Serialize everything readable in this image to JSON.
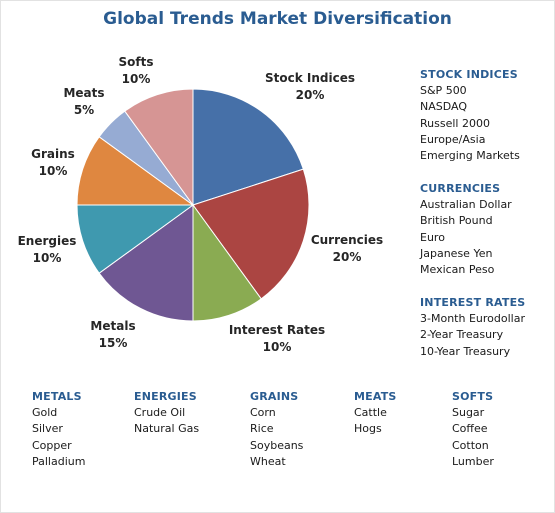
{
  "title": "Global Trends Market Diversification",
  "chart_data": {
    "type": "pie",
    "title": "Global Trends Market Diversification",
    "start_angle_deg": 0,
    "direction": "clockwise",
    "slices": [
      {
        "name": "Stock Indices",
        "value": 20,
        "pct_label": "20%",
        "color": "#4670a8"
      },
      {
        "name": "Currencies",
        "value": 20,
        "pct_label": "20%",
        "color": "#ab4542"
      },
      {
        "name": "Interest Rates",
        "value": 10,
        "pct_label": "10%",
        "color": "#8aab52"
      },
      {
        "name": "Metals",
        "value": 15,
        "pct_label": "15%",
        "color": "#6f5793"
      },
      {
        "name": "Energies",
        "value": 10,
        "pct_label": "10%",
        "color": "#3f99af"
      },
      {
        "name": "Grains",
        "value": 10,
        "pct_label": "10%",
        "color": "#df8740"
      },
      {
        "name": "Meats",
        "value": 5,
        "pct_label": "5%",
        "color": "#96abd3"
      },
      {
        "name": "Softs",
        "value": 10,
        "pct_label": "10%",
        "color": "#d69594"
      }
    ]
  },
  "side_groups": [
    {
      "title": "STOCK INDICES",
      "items": [
        "S&P 500",
        "NASDAQ",
        "Russell 2000",
        "Europe/Asia",
        "Emerging Markets"
      ]
    },
    {
      "title": "CURRENCIES",
      "items": [
        "Australian Dollar",
        "British Pound",
        "Euro",
        "Japanese Yen",
        "Mexican Peso"
      ]
    },
    {
      "title": "INTEREST RATES",
      "items": [
        "3-Month Eurodollar",
        "2-Year Treasury",
        "10-Year Treasury"
      ]
    }
  ],
  "bottom_groups": [
    {
      "title": "METALS",
      "items": [
        "Gold",
        "Silver",
        "Copper",
        "Palladium"
      ]
    },
    {
      "title": "ENERGIES",
      "items": [
        "Crude Oil",
        "Natural Gas"
      ]
    },
    {
      "title": "GRAINS",
      "items": [
        "Corn",
        "Rice",
        "Soybeans",
        "Wheat"
      ]
    },
    {
      "title": "MEATS",
      "items": [
        "Cattle",
        "Hogs"
      ]
    },
    {
      "title": "SOFTS",
      "items": [
        "Sugar",
        "Coffee",
        "Cotton",
        "Lumber"
      ]
    }
  ]
}
